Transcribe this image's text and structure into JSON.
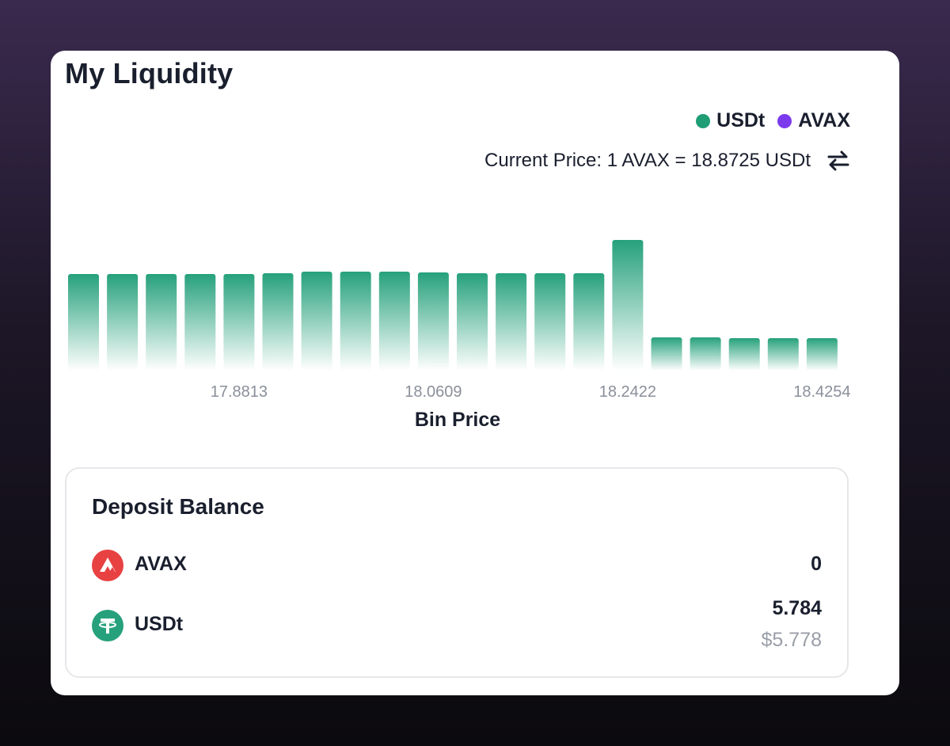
{
  "card": {
    "title": "My Liquidity"
  },
  "legend": [
    {
      "label": "USDt",
      "color": "#1f9d74"
    },
    {
      "label": "AVAX",
      "color": "#7c3aed"
    }
  ],
  "current_price": {
    "text": "Current Price: 1 AVAX = 18.8725 USDt",
    "swap_icon": "swap-arrows-icon"
  },
  "chart_data": {
    "type": "bar",
    "xlabel": "Bin Price",
    "tick_labels": [
      {
        "bar_index": 4,
        "label": "17.8813"
      },
      {
        "bar_index": 9,
        "label": "18.0609"
      },
      {
        "bar_index": 14,
        "label": "18.2422"
      },
      {
        "bar_index": 19,
        "label": "18.4254"
      }
    ],
    "series": [
      {
        "name": "USDt",
        "color": "#1f9d74",
        "values": [
          122,
          122,
          122,
          122,
          122,
          123,
          125,
          125,
          125,
          124,
          123,
          123,
          123,
          123,
          165,
          42,
          42,
          41,
          41,
          41
        ]
      },
      {
        "name": "AVAX",
        "color": "#7c3aed",
        "values": [
          0,
          0,
          0,
          0,
          0,
          0,
          0,
          0,
          0,
          0,
          0,
          0,
          0,
          0,
          0,
          0,
          0,
          0,
          0,
          0
        ]
      }
    ],
    "ylim": [
      0,
      170
    ],
    "grid": false,
    "legend_position": "top-right"
  },
  "deposit": {
    "title": "Deposit Balance",
    "tokens": [
      {
        "name": "AVAX",
        "amount": "0",
        "usd": "",
        "icon": "avax-token-icon",
        "color": "#e84142"
      },
      {
        "name": "USDt",
        "amount": "5.784",
        "usd": "$5.778",
        "icon": "usdt-token-icon",
        "color": "#26a17b"
      }
    ]
  }
}
